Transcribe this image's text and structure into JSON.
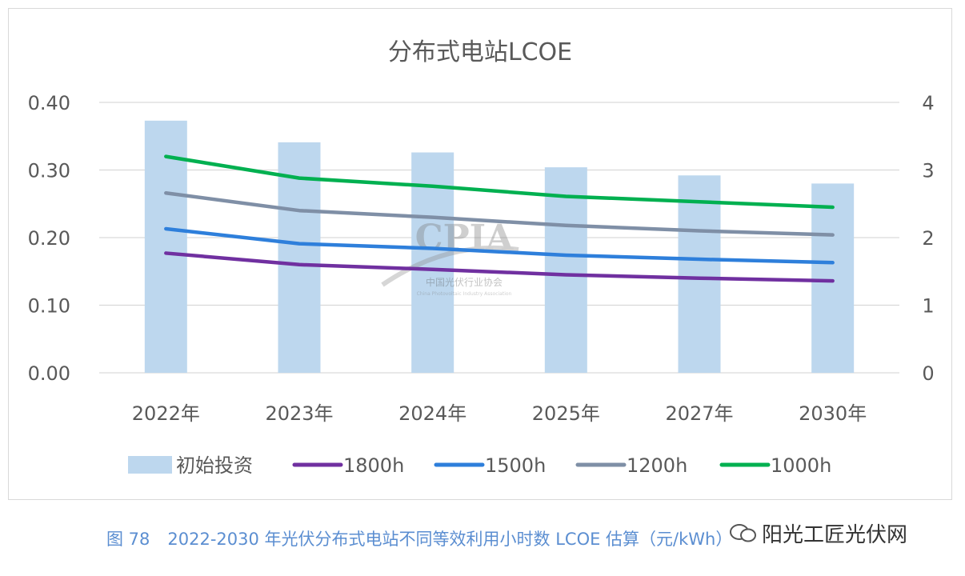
{
  "chart_data": {
    "type": "bar+line",
    "title": "分布式电站LCOE",
    "categories": [
      "2022年",
      "2023年",
      "2024年",
      "2025年",
      "2027年",
      "2030年"
    ],
    "left_axis": {
      "ylim": [
        0,
        0.4
      ],
      "ticks": [
        "0.00",
        "0.10",
        "0.20",
        "0.30",
        "0.40"
      ]
    },
    "right_axis": {
      "ylim": [
        0,
        4
      ],
      "ticks": [
        "0",
        "1",
        "2",
        "3",
        "4"
      ]
    },
    "grid": true,
    "legend_position": "bottom",
    "bars": {
      "name": "初始投资",
      "axis": "right",
      "color": "#bdd7ee",
      "values": [
        3.73,
        3.41,
        3.26,
        3.04,
        2.92,
        2.8
      ]
    },
    "series": [
      {
        "name": "1800h",
        "axis": "left",
        "color": "#7030a0",
        "values": [
          0.177,
          0.16,
          0.153,
          0.145,
          0.14,
          0.136
        ]
      },
      {
        "name": "1500h",
        "axis": "left",
        "color": "#2e7fdb",
        "values": [
          0.213,
          0.191,
          0.184,
          0.174,
          0.168,
          0.163
        ]
      },
      {
        "name": "1200h",
        "axis": "left",
        "color": "#7f8fa6",
        "values": [
          0.266,
          0.24,
          0.23,
          0.218,
          0.21,
          0.204
        ]
      },
      {
        "name": "1000h",
        "axis": "left",
        "color": "#00b050",
        "values": [
          0.32,
          0.288,
          0.276,
          0.261,
          0.253,
          0.245
        ]
      }
    ]
  },
  "watermark": {
    "logo_text": "CPIA",
    "org_name": "中国光伏行业协会",
    "org_name_en": "China Photovoltaic Industry Association"
  },
  "caption": {
    "figure_no": "图 78",
    "text": "2022-2030 年光伏分布式电站不同等效利用小时数 LCOE 估算（元/kWh）"
  },
  "account_watermark": {
    "text": "阳光工匠光伏网"
  }
}
